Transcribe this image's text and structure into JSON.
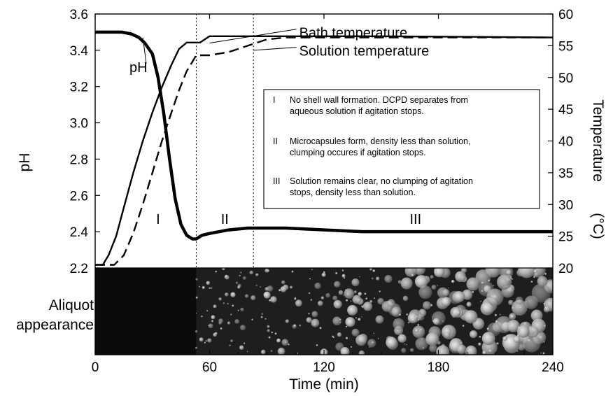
{
  "chart_data": {
    "type": "line",
    "xlabel": "Time (min)",
    "ylabel_left": "pH",
    "ylabel_right": "Temperature",
    "ylabel_right_unit": "(°C)",
    "xlim": [
      0,
      240
    ],
    "ylim_left": [
      2.2,
      3.6
    ],
    "ylim_right": [
      20,
      60
    ],
    "x_ticks": [
      "0",
      "60",
      "120",
      "180",
      "240"
    ],
    "y_left_ticks": [
      "2.2",
      "2.4",
      "2.6",
      "2.8",
      "3.0",
      "3.2",
      "3.4",
      "3.6"
    ],
    "y_right_ticks": [
      "20",
      "25",
      "30",
      "35",
      "40",
      "45",
      "50",
      "55",
      "60"
    ],
    "grid": false,
    "series": [
      {
        "name": "pH",
        "axis": "left",
        "style": "thick-solid",
        "color": "#000000",
        "x": [
          0,
          8,
          14,
          19,
          23,
          26,
          30,
          33,
          36,
          39,
          42,
          45,
          48,
          51,
          53,
          56,
          60,
          70,
          80,
          100,
          140,
          180,
          240
        ],
        "y": [
          3.5,
          3.5,
          3.5,
          3.49,
          3.47,
          3.44,
          3.38,
          3.25,
          3.05,
          2.8,
          2.58,
          2.44,
          2.38,
          2.36,
          2.36,
          2.38,
          2.39,
          2.41,
          2.42,
          2.42,
          2.4,
          2.4,
          2.4
        ]
      },
      {
        "name": "Bath temperature",
        "axis": "right",
        "style": "solid",
        "color": "#000000",
        "x": [
          0,
          4,
          7,
          11,
          15,
          20,
          25,
          30,
          35,
          40,
          44,
          48,
          52,
          55,
          60,
          70,
          100,
          150,
          200,
          240
        ],
        "y": [
          20.5,
          20.5,
          22.0,
          25.0,
          29.5,
          35.0,
          40.0,
          44.5,
          48.5,
          52.0,
          54.5,
          55.5,
          55.5,
          55.5,
          56.5,
          56.5,
          56.5,
          56.5,
          56.4,
          56.3
        ]
      },
      {
        "name": "Solution temperature",
        "axis": "right",
        "style": "dashed",
        "color": "#000000",
        "x": [
          0,
          10,
          15,
          20,
          25,
          30,
          35,
          40,
          44,
          48,
          51,
          53,
          60,
          70,
          80,
          90,
          100,
          150,
          200,
          240
        ],
        "y": [
          20.5,
          20.5,
          22.0,
          25.5,
          30.0,
          35.0,
          40.0,
          44.5,
          48.0,
          51.0,
          52.5,
          53.5,
          53.5,
          54.0,
          55.0,
          56.0,
          56.3,
          56.3,
          56.3,
          56.3
        ]
      }
    ],
    "vlines": [
      53,
      83
    ],
    "regions": [
      {
        "label": "I",
        "x": 33,
        "y": 2.47
      },
      {
        "label": "II",
        "x": 68,
        "y": 2.47
      },
      {
        "label": "III",
        "x": 168,
        "y": 2.47
      }
    ],
    "annotations": [
      {
        "text": "pH",
        "x": 18,
        "y": 3.28
      },
      {
        "text": "Bath temperature",
        "x": 107,
        "y": 3.47
      },
      {
        "text": "Solution temperature",
        "x": 107,
        "y": 3.37
      }
    ],
    "legend_box": {
      "position": "center-right",
      "items": [
        {
          "numeral": "I",
          "lines": [
            "No shell wall formation.  DCPD separates from",
            "aqueous solution if agitation stops."
          ]
        },
        {
          "numeral": "II",
          "lines": [
            "Microcapsules form,  density less than solution,",
            "clumping occures if agitation stops."
          ]
        },
        {
          "numeral": "III",
          "lines": [
            "Solution remains clear,  no clumping of agitation",
            "stops, density less than solution."
          ]
        }
      ]
    },
    "image_strip": {
      "label_lines": [
        "Aliquot",
        "appearance"
      ],
      "x_boundaries": [
        0,
        53,
        240
      ]
    }
  }
}
